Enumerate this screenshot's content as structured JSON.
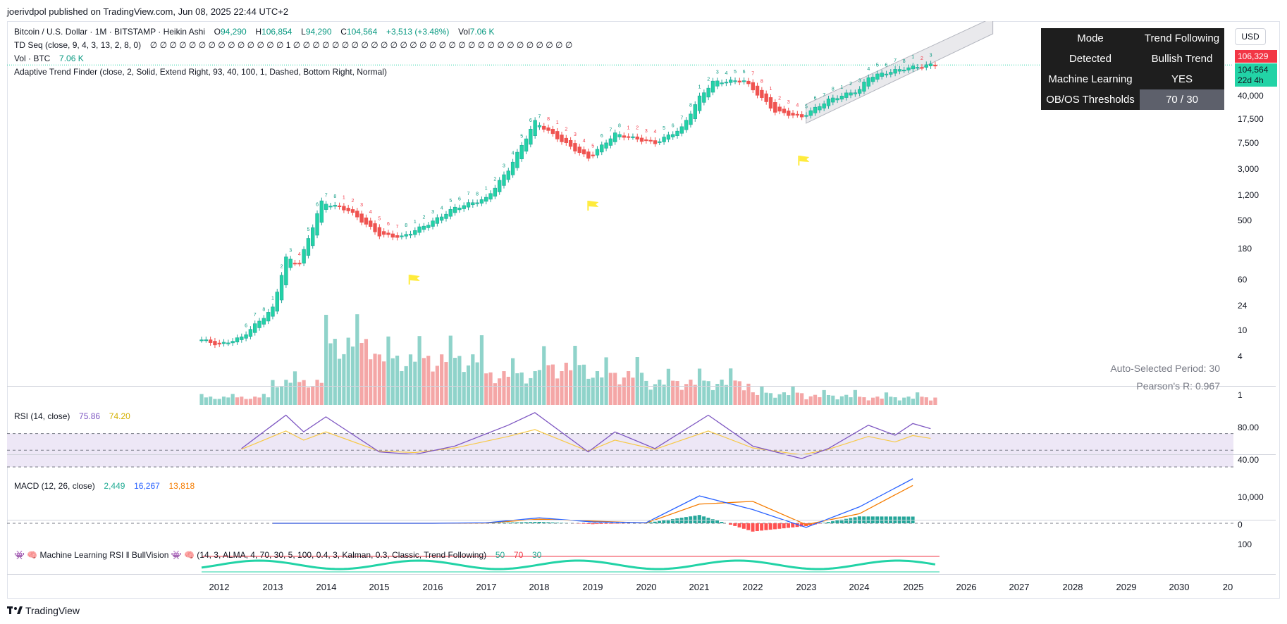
{
  "publisher": "joerivdpol published on TradingView.com, Jun 08, 2025 22:44 UTC+2",
  "main_legend": {
    "symbol": "Bitcoin / U.S. Dollar · 1M · BITSTAMP · Heikin Ashi",
    "o_label": "O",
    "o_val": "94,290",
    "h_label": "H",
    "h_val": "106,854",
    "l_label": "L",
    "l_val": "94,290",
    "c_label": "C",
    "c_val": "104,564",
    "change": "+3,513 (+3.48%)",
    "vol_label": "Vol",
    "vol_val": "7.06 K"
  },
  "td_legend": {
    "label": "TD Seq (close, 9, 4, 3, 13, 2, 8, 0)",
    "values": "∅ ∅ ∅ ∅ ∅ ∅ ∅ ∅ ∅ ∅ ∅ ∅ ∅ ∅ 1 ∅ ∅ ∅ ∅ ∅ ∅ ∅ ∅ ∅ ∅ ∅ ∅ ∅ ∅ ∅ ∅ ∅ ∅ ∅ ∅ ∅ ∅ ∅ ∅ ∅ ∅ ∅ ∅ ∅"
  },
  "vol_legend": {
    "label": "Vol · BTC",
    "value": "7.06 K"
  },
  "atf_legend": {
    "label": "Adaptive Trend Finder (close, 2, Solid, Extend Right, 93, 40, 100, 1, Dashed, Bottom Right, Normal)"
  },
  "rsi_legend": {
    "label": "RSI (14, close)",
    "v1": "75.86",
    "v2": "74.20"
  },
  "macd_legend": {
    "label": "MACD (12, 26, close)",
    "v1": "2,449",
    "v2": "16,267",
    "v3": "13,818"
  },
  "mlrsi_legend": {
    "label": "👾 🧠 Machine Learning RSI ‖ BullVision 👾 🧠 (14, 3, ALMA, 4, 70, 30, 5, 100, 0.4, 3, Kalman, 0.3, Classic, Trend Following)",
    "v1": "50",
    "v2": "70",
    "v3": "30"
  },
  "currency": "USD",
  "info_table": [
    {
      "key": "Mode",
      "value": "Trend Following"
    },
    {
      "key": "Detected",
      "value": "Bullish Trend"
    },
    {
      "key": "Machine Learning",
      "value": "YES"
    },
    {
      "key": "OB/OS Thresholds",
      "value": "70 / 30"
    }
  ],
  "price_tags": {
    "upper": "106,329",
    "current": "104,564",
    "countdown": "22d 4h"
  },
  "price_axis": [
    "40,000",
    "17,500",
    "7,500",
    "3,000",
    "1,200",
    "500",
    "180",
    "60",
    "24",
    "10",
    "4",
    "1"
  ],
  "rsi_axis": [
    "80.00",
    "40.00"
  ],
  "macd_axis": [
    "10,000",
    "0"
  ],
  "mlrsi_axis": [
    "100"
  ],
  "x_axis": [
    "2012",
    "2013",
    "2014",
    "2015",
    "2016",
    "2017",
    "2018",
    "2019",
    "2020",
    "2021",
    "2022",
    "2023",
    "2024",
    "2025",
    "2026",
    "2027",
    "2028",
    "2029",
    "2030",
    "20"
  ],
  "stats": {
    "period": "Auto-Selected Period: 30",
    "pearson": "Pearson's R: 0.967"
  },
  "logo_text": "TradingView",
  "colors": {
    "up": "#26a69a",
    "down": "#ef5350",
    "up_body": "#22d3a6",
    "rsi": "#7e57c2",
    "rsi_ma": "#f7c948",
    "macd": "#2962ff",
    "signal": "#f57c00",
    "flag": "#ffeb3b"
  },
  "chart_data": [
    {
      "type": "candlestick",
      "title": "Bitcoin / U.S. Dollar · 1M · BITSTAMP · Heikin Ashi",
      "scale": "log",
      "x": [
        "2011-09",
        "2012-01",
        "2012-06",
        "2013-01",
        "2013-04",
        "2013-07",
        "2013-12",
        "2014-06",
        "2015-01",
        "2015-06",
        "2016-01",
        "2016-06",
        "2017-01",
        "2017-06",
        "2017-12",
        "2018-06",
        "2018-12",
        "2019-06",
        "2020-03",
        "2020-09",
        "2021-01",
        "2021-04",
        "2021-11",
        "2022-06",
        "2022-12",
        "2023-06",
        "2024-01",
        "2024-03",
        "2024-11",
        "2025-05"
      ],
      "values": [
        6,
        5,
        6.5,
        18,
        110,
        90,
        800,
        600,
        250,
        230,
        400,
        650,
        900,
        2500,
        14000,
        7000,
        3800,
        9000,
        6500,
        11000,
        33000,
        57000,
        60000,
        20000,
        16500,
        30000,
        43000,
        68000,
        92000,
        104564
      ],
      "ylim": [
        1,
        120000
      ]
    },
    {
      "type": "bar",
      "title": "Vol · BTC",
      "x": [
        "2012",
        "2013",
        "2014",
        "2015",
        "2016",
        "2017",
        "2018",
        "2019",
        "2020",
        "2021",
        "2022",
        "2023",
        "2024",
        "2025"
      ],
      "values": [
        1,
        3,
        8,
        6,
        6,
        4,
        5,
        4,
        3,
        3,
        1.5,
        1.2,
        1,
        1
      ]
    },
    {
      "type": "line",
      "title": "RSI (14, close)",
      "x": [
        "2012-06",
        "2013-04",
        "2013-08",
        "2014-01",
        "2015-01",
        "2015-09",
        "2016-06",
        "2017-06",
        "2017-12",
        "2018-12",
        "2019-06",
        "2020-03",
        "2021-03",
        "2022-01",
        "2022-12",
        "2023-06",
        "2024-03",
        "2024-09",
        "2025-01",
        "2025-05"
      ],
      "series": [
        {
          "values": [
            52,
            92,
            72,
            90,
            48,
            45,
            55,
            80,
            95,
            48,
            72,
            52,
            92,
            55,
            40,
            52,
            80,
            68,
            82,
            75.86
          ]
        }
      ],
      "ylim": [
        30,
        100
      ]
    },
    {
      "type": "line",
      "title": "MACD (12, 26, close)",
      "x": [
        "2013",
        "2014",
        "2015",
        "2016",
        "2017",
        "2018",
        "2019",
        "2020",
        "2021",
        "2022",
        "2023",
        "2024",
        "2025"
      ],
      "series": [
        {
          "values": [
            0,
            0,
            0,
            0,
            200,
            2000,
            500,
            200,
            10000,
            5000,
            -1500,
            6000,
            16267
          ]
        },
        {
          "values": [
            0,
            0,
            0,
            0,
            100,
            1500,
            800,
            100,
            7000,
            8000,
            -500,
            3500,
            13818
          ]
        }
      ],
      "ylim": [
        -3000,
        18000
      ]
    }
  ]
}
